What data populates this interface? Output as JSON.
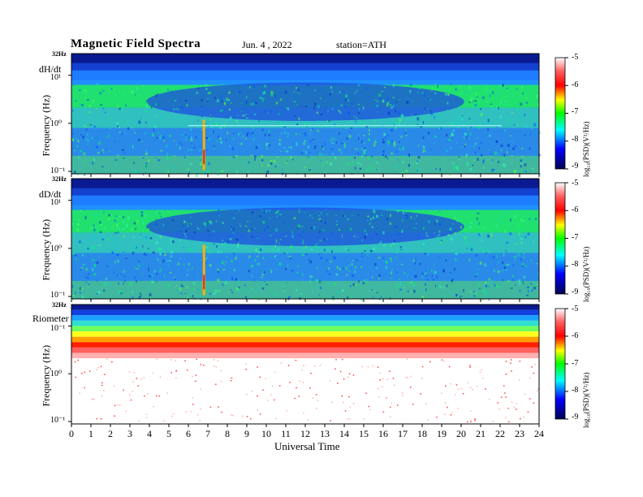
{
  "header": {
    "title": "Magnetic  Field  Spectra",
    "date": "Jun. 4 , 2022",
    "station": "station=ATH"
  },
  "panels": [
    {
      "label": "dH/dt",
      "ylabel": "Frequency  (Hz)",
      "top_freq": "32Hz",
      "yticks": [
        "10¹",
        "10⁰",
        "10⁻¹"
      ],
      "type": "magnetic"
    },
    {
      "label": "dD/dt",
      "ylabel": "Frequency  (Hz)",
      "top_freq": "32Hz",
      "yticks": [
        "10¹",
        "10⁰",
        "10⁻¹"
      ],
      "type": "magnetic"
    },
    {
      "label": "Riometer",
      "ylabel": "Frequency  (Hz)",
      "top_freq": "32Hz",
      "yticks": [
        "10⁻¹",
        "10⁰",
        "10⁻¹"
      ],
      "type": "riometer"
    }
  ],
  "colorbar": {
    "label": "log₁₀(PSD)(V²/Hz)",
    "ticks": [
      "-5",
      "-6",
      "-7",
      "-8",
      "-9"
    ],
    "colors": [
      "#ffffff",
      "#ff0000",
      "#ffff00",
      "#00ff00",
      "#00ffff",
      "#0000ff",
      "#000060"
    ]
  },
  "xaxis": {
    "label": "Universal  Time",
    "ticks": [
      "0",
      "1",
      "2",
      "3",
      "4",
      "5",
      "6",
      "7",
      "8",
      "9",
      "10",
      "11",
      "12",
      "13",
      "14",
      "15",
      "16",
      "17",
      "18",
      "19",
      "20",
      "21",
      "22",
      "23",
      "24"
    ]
  },
  "chart_data": {
    "type": "heatmap",
    "title": "Magnetic  Field  Spectra",
    "xlabel": "Universal  Time",
    "ylabel": "Frequency  (Hz)",
    "xlim": [
      0,
      24
    ],
    "ylim_hz": [
      0.1,
      32
    ],
    "yscale": "log",
    "colorbar_range": [
      -9,
      -5
    ],
    "colorbar_label": "log₁₀(PSD)(V²/Hz)",
    "series": [
      {
        "name": "dH/dt"
      },
      {
        "name": "dD/dt"
      },
      {
        "name": "Riometer"
      }
    ]
  }
}
